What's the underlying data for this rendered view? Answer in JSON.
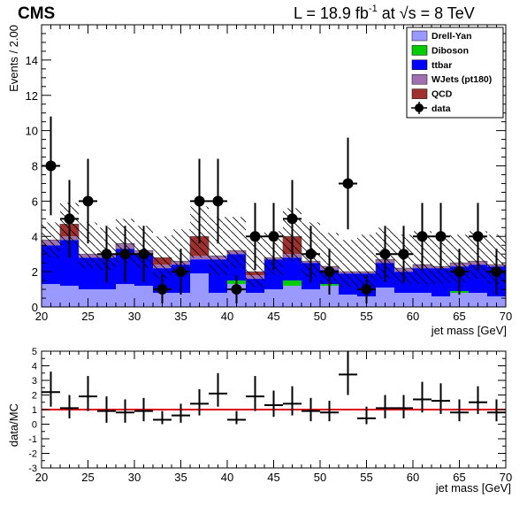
{
  "header": {
    "experiment": "CMS",
    "lumi_prefix": "L = 18.9 fb",
    "lumi_exp": "-1",
    "lumi_mid": " at ",
    "sqrt_symbol": "√",
    "energy": "s = 8 TeV"
  },
  "legend": {
    "entries": [
      {
        "label": "Drell-Yan",
        "color": "#9999ff",
        "kind": "box"
      },
      {
        "label": "Diboson",
        "color": "#00cc00",
        "kind": "box"
      },
      {
        "label": "ttbar",
        "color": "#0000ff",
        "kind": "box"
      },
      {
        "label": "WJets (pt180)",
        "color": "#a070b0",
        "kind": "box"
      },
      {
        "label": "QCD",
        "color": "#a03030",
        "kind": "box"
      },
      {
        "label": "data",
        "color": "#000000",
        "kind": "marker"
      }
    ]
  },
  "chart_data": [
    {
      "type": "bar",
      "stacked": true,
      "ylabel": "Events / 2.00",
      "xlabel": "jet mass [GeV]",
      "xlim": [
        20,
        70
      ],
      "ylim": [
        0,
        16
      ],
      "bin_width": 2,
      "bin_edges": [
        20,
        22,
        24,
        26,
        28,
        30,
        32,
        34,
        36,
        38,
        40,
        42,
        44,
        46,
        48,
        50,
        52,
        54,
        56,
        58,
        60,
        62,
        64,
        66,
        68,
        70
      ],
      "x_ticks": [
        20,
        25,
        30,
        35,
        40,
        45,
        50,
        55,
        60,
        65,
        70
      ],
      "y_ticks": [
        0,
        2,
        4,
        6,
        8,
        10,
        12,
        14
      ],
      "series": [
        {
          "name": "Drell-Yan",
          "color": "#9999ff",
          "values": [
            1.3,
            1.2,
            1.0,
            1.0,
            1.3,
            1.2,
            0.8,
            0.8,
            1.9,
            0.8,
            1.3,
            0.8,
            1.0,
            1.2,
            1.0,
            1.2,
            0.7,
            0.6,
            1.1,
            0.8,
            0.8,
            0.6,
            0.8,
            0.8,
            0.6
          ]
        },
        {
          "name": "Diboson",
          "color": "#00cc00",
          "values": [
            0.0,
            0.0,
            0.0,
            0.0,
            0.0,
            0.0,
            0.0,
            0.0,
            0.0,
            0.0,
            0.2,
            0.0,
            0.0,
            0.3,
            0.0,
            0.1,
            0.0,
            0.0,
            0.0,
            0.0,
            0.0,
            0.0,
            0.1,
            0.0,
            0.0
          ]
        },
        {
          "name": "ttbar",
          "color": "#0000ff",
          "values": [
            2.2,
            2.6,
            1.8,
            1.8,
            2.0,
            1.8,
            1.4,
            1.6,
            0.8,
            1.9,
            1.5,
            0.8,
            1.7,
            1.3,
            1.5,
            0.8,
            1.2,
            1.3,
            1.4,
            1.2,
            1.4,
            1.6,
            1.4,
            1.6,
            1.7
          ]
        },
        {
          "name": "WJets (pt180)",
          "color": "#a070b0",
          "values": [
            0.3,
            0.2,
            0.2,
            0.2,
            0.3,
            0.2,
            0.2,
            0.2,
            0.2,
            0.2,
            0.2,
            0.2,
            0.1,
            0.2,
            0.1,
            0.2,
            0.1,
            0.1,
            0.2,
            0.2,
            0.2,
            0.1,
            0.2,
            0.2,
            0.1
          ]
        },
        {
          "name": "QCD",
          "color": "#a03030",
          "values": [
            0.0,
            0.7,
            0.0,
            0.0,
            0.0,
            0.0,
            0.4,
            0.0,
            1.1,
            0.0,
            0.0,
            0.2,
            0.0,
            1.0,
            0.0,
            0.0,
            0.0,
            0.0,
            0.0,
            0.0,
            0.0,
            0.0,
            0.0,
            0.0,
            0.0
          ]
        }
      ],
      "uncertainty_band": {
        "style": "hatched",
        "low": [
          2.8,
          3.5,
          2.2,
          2.1,
          2.5,
          2.2,
          1.6,
          1.8,
          2.8,
          1.8,
          2.2,
          1.1,
          1.8,
          2.6,
          1.7,
          1.3,
          1.1,
          1.1,
          1.6,
          1.3,
          1.3,
          1.3,
          1.4,
          1.6,
          1.3
        ],
        "high": [
          4.8,
          5.9,
          4.8,
          4.5,
          5.0,
          4.6,
          4.0,
          4.4,
          5.7,
          5.1,
          5.1,
          4.1,
          4.3,
          5.6,
          4.8,
          4.2,
          3.8,
          4.1,
          4.5,
          4.1,
          4.3,
          4.0,
          4.1,
          4.3,
          4.1
        ]
      },
      "data_points": {
        "name": "data",
        "x": [
          21,
          23,
          25,
          27,
          29,
          31,
          33,
          35,
          37,
          39,
          41,
          43,
          45,
          47,
          49,
          51,
          53,
          55,
          57,
          59,
          61,
          63,
          65,
          67,
          69
        ],
        "y": [
          8,
          5,
          6,
          3,
          3,
          3,
          1,
          2,
          6,
          6,
          1,
          4,
          4,
          5,
          3,
          2,
          7,
          1,
          3,
          3,
          4,
          4,
          2,
          4,
          2
        ],
        "err_low": [
          2.8,
          2.2,
          2.4,
          1.6,
          1.6,
          1.6,
          0.8,
          1.3,
          2.4,
          2.4,
          0.8,
          1.9,
          1.9,
          2.2,
          1.6,
          1.3,
          2.6,
          0.8,
          1.6,
          1.6,
          1.9,
          1.9,
          1.3,
          1.9,
          1.3
        ],
        "err_high": [
          2.8,
          2.2,
          2.4,
          1.6,
          1.6,
          1.6,
          0.8,
          1.3,
          2.4,
          2.4,
          0.8,
          1.9,
          1.9,
          2.2,
          1.6,
          1.3,
          2.6,
          0.8,
          1.6,
          1.6,
          1.9,
          1.9,
          1.3,
          1.9,
          1.3
        ]
      }
    },
    {
      "type": "scatter",
      "ylabel": "data/MC",
      "xlabel": "jet mass [GeV]",
      "xlim": [
        20,
        70
      ],
      "ylim": [
        -3,
        5
      ],
      "x_ticks": [
        20,
        25,
        30,
        35,
        40,
        45,
        50,
        55,
        60,
        65,
        70
      ],
      "y_ticks": [
        -3,
        -2,
        -1,
        0,
        1,
        2,
        3,
        4,
        5
      ],
      "reference_line": {
        "y": 1,
        "color": "#dd0000"
      },
      "x": [
        21,
        23,
        25,
        27,
        29,
        31,
        33,
        35,
        37,
        39,
        41,
        43,
        45,
        47,
        49,
        51,
        53,
        55,
        57,
        59,
        61,
        63,
        65,
        67,
        69
      ],
      "y": [
        2.2,
        1.1,
        1.9,
        0.9,
        0.8,
        0.9,
        0.3,
        0.6,
        1.4,
        2.1,
        0.3,
        1.9,
        1.3,
        1.4,
        0.9,
        0.8,
        3.4,
        0.4,
        1.1,
        1.1,
        1.7,
        1.6,
        0.8,
        1.5,
        0.8
      ],
      "err_low": [
        1.0,
        0.7,
        1.0,
        0.8,
        0.7,
        0.7,
        0.3,
        0.5,
        0.8,
        0.9,
        0.3,
        1.0,
        0.8,
        0.8,
        0.7,
        0.6,
        1.4,
        0.4,
        0.7,
        0.7,
        0.9,
        0.9,
        0.6,
        0.8,
        0.6
      ],
      "err_high": [
        1.4,
        0.9,
        1.4,
        1.0,
        0.9,
        0.9,
        0.6,
        0.8,
        1.0,
        1.4,
        0.6,
        1.4,
        1.0,
        1.2,
        0.9,
        0.8,
        1.6,
        0.8,
        0.9,
        0.9,
        1.2,
        1.2,
        0.9,
        1.1,
        0.9
      ]
    }
  ]
}
